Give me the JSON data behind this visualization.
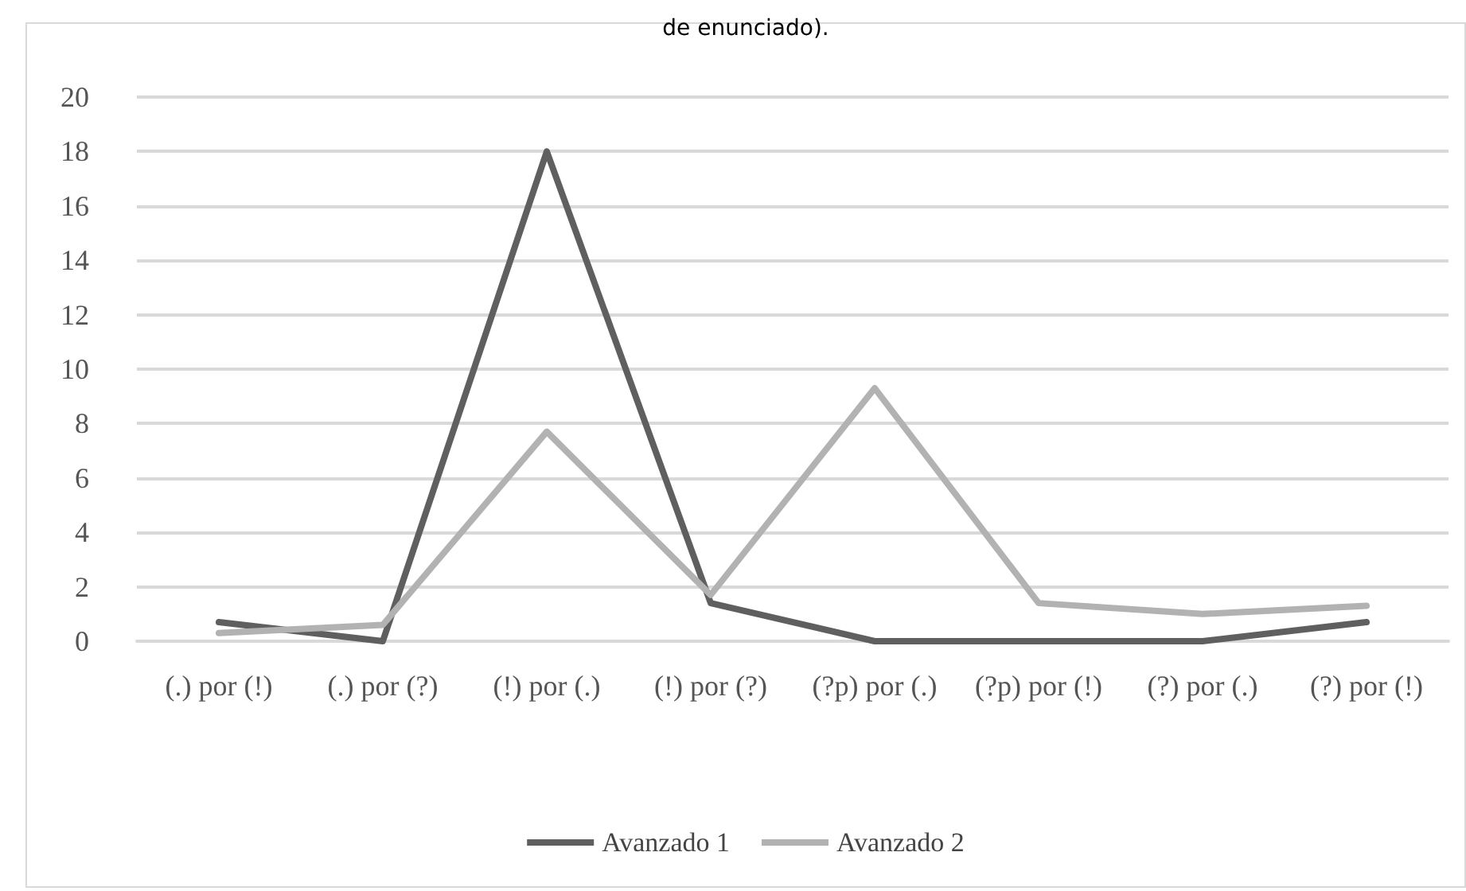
{
  "chart_data": {
    "type": "line",
    "title": "de enunciado).",
    "categories": [
      "(.) por (!)",
      "(.) por (?)",
      "(!) por (.)",
      "(!) por (?)",
      "(?p) por (.)",
      "(?p) por (!)",
      "(?) por (.)",
      "(?) por (!)"
    ],
    "series": [
      {
        "name": "Avanzado 1",
        "color": "#5f5f5f",
        "values": [
          0.7,
          0,
          18,
          1.4,
          0,
          0,
          0,
          0.7
        ]
      },
      {
        "name": "Avanzado 2",
        "color": "#b2b2b2",
        "values": [
          0.3,
          0.6,
          7.7,
          1.7,
          9.3,
          1.4,
          1.0,
          1.3
        ]
      }
    ],
    "ylim": [
      0,
      20
    ],
    "yticks": [
      0,
      2,
      4,
      6,
      8,
      10,
      12,
      14,
      16,
      18,
      20
    ],
    "grid": "y",
    "legend": "bottom",
    "marker": "none",
    "line_style": "solid"
  }
}
